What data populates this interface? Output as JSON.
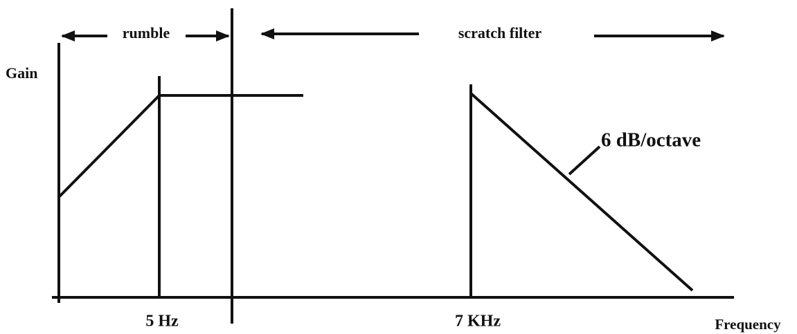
{
  "labels": {
    "rumble": "rumble",
    "scratch_filter": "scratch filter",
    "gain": "Gain",
    "slope": "6 dB/octave",
    "low_freq": "5 Hz",
    "high_freq": "7 KHz",
    "frequency": "Frequency"
  }
}
